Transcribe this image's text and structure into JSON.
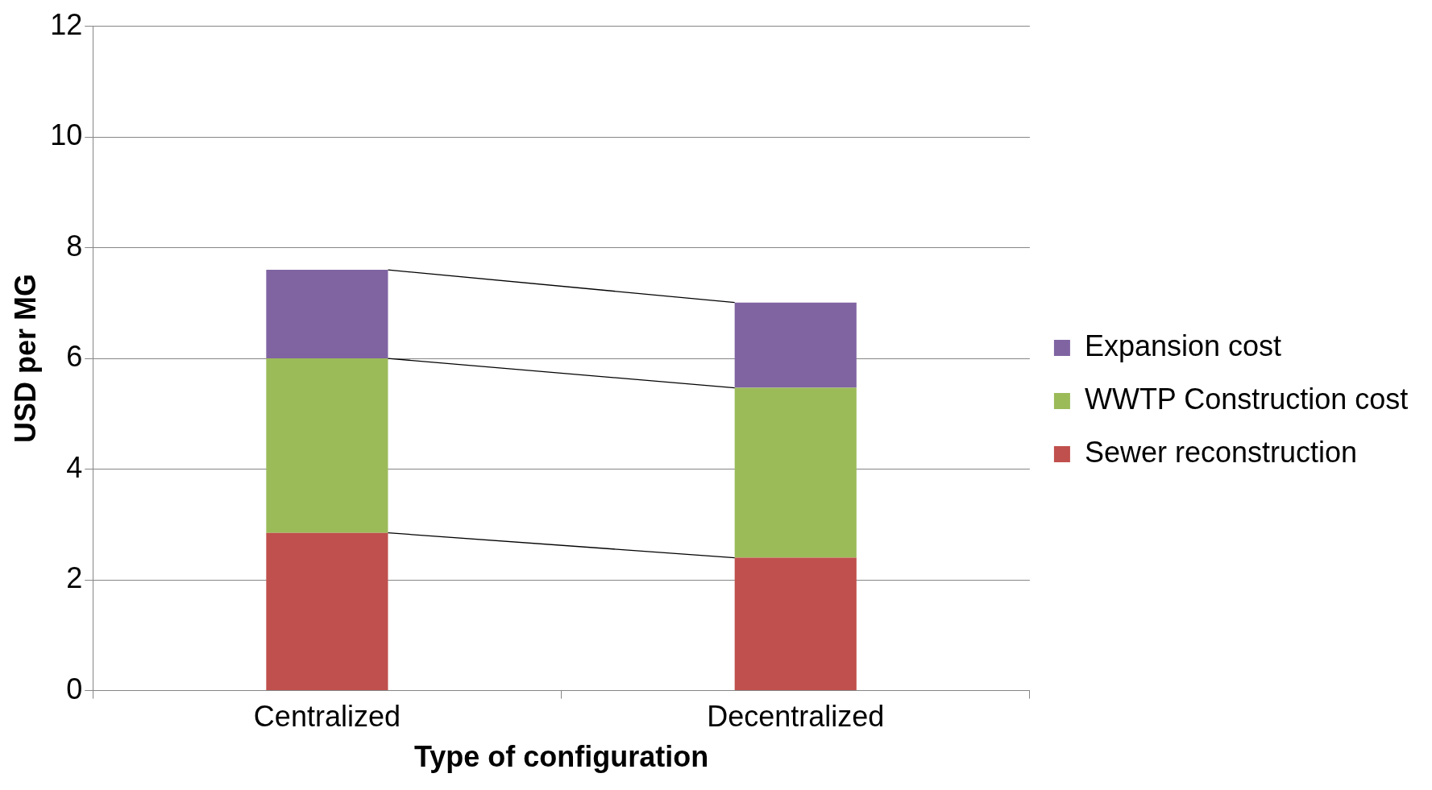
{
  "chart_data": {
    "type": "bar",
    "stacked": true,
    "xlabel": "Type of configuration",
    "ylabel": "USD per MG",
    "categories": [
      "Centralized",
      "Decentralized"
    ],
    "series": [
      {
        "name": "Sewer reconstruction",
        "color": "#c0504d",
        "values": [
          2.85,
          2.4
        ]
      },
      {
        "name": "WWTP Construction cost",
        "color": "#9bbb59",
        "values": [
          3.15,
          3.07
        ]
      },
      {
        "name": "Expansion cost",
        "color": "#8064a2",
        "values": [
          1.6,
          1.54
        ]
      }
    ],
    "ylim": [
      0,
      12
    ],
    "yticks": [
      0,
      2,
      4,
      6,
      8,
      10,
      12
    ],
    "grid": "y",
    "legend": "right"
  }
}
